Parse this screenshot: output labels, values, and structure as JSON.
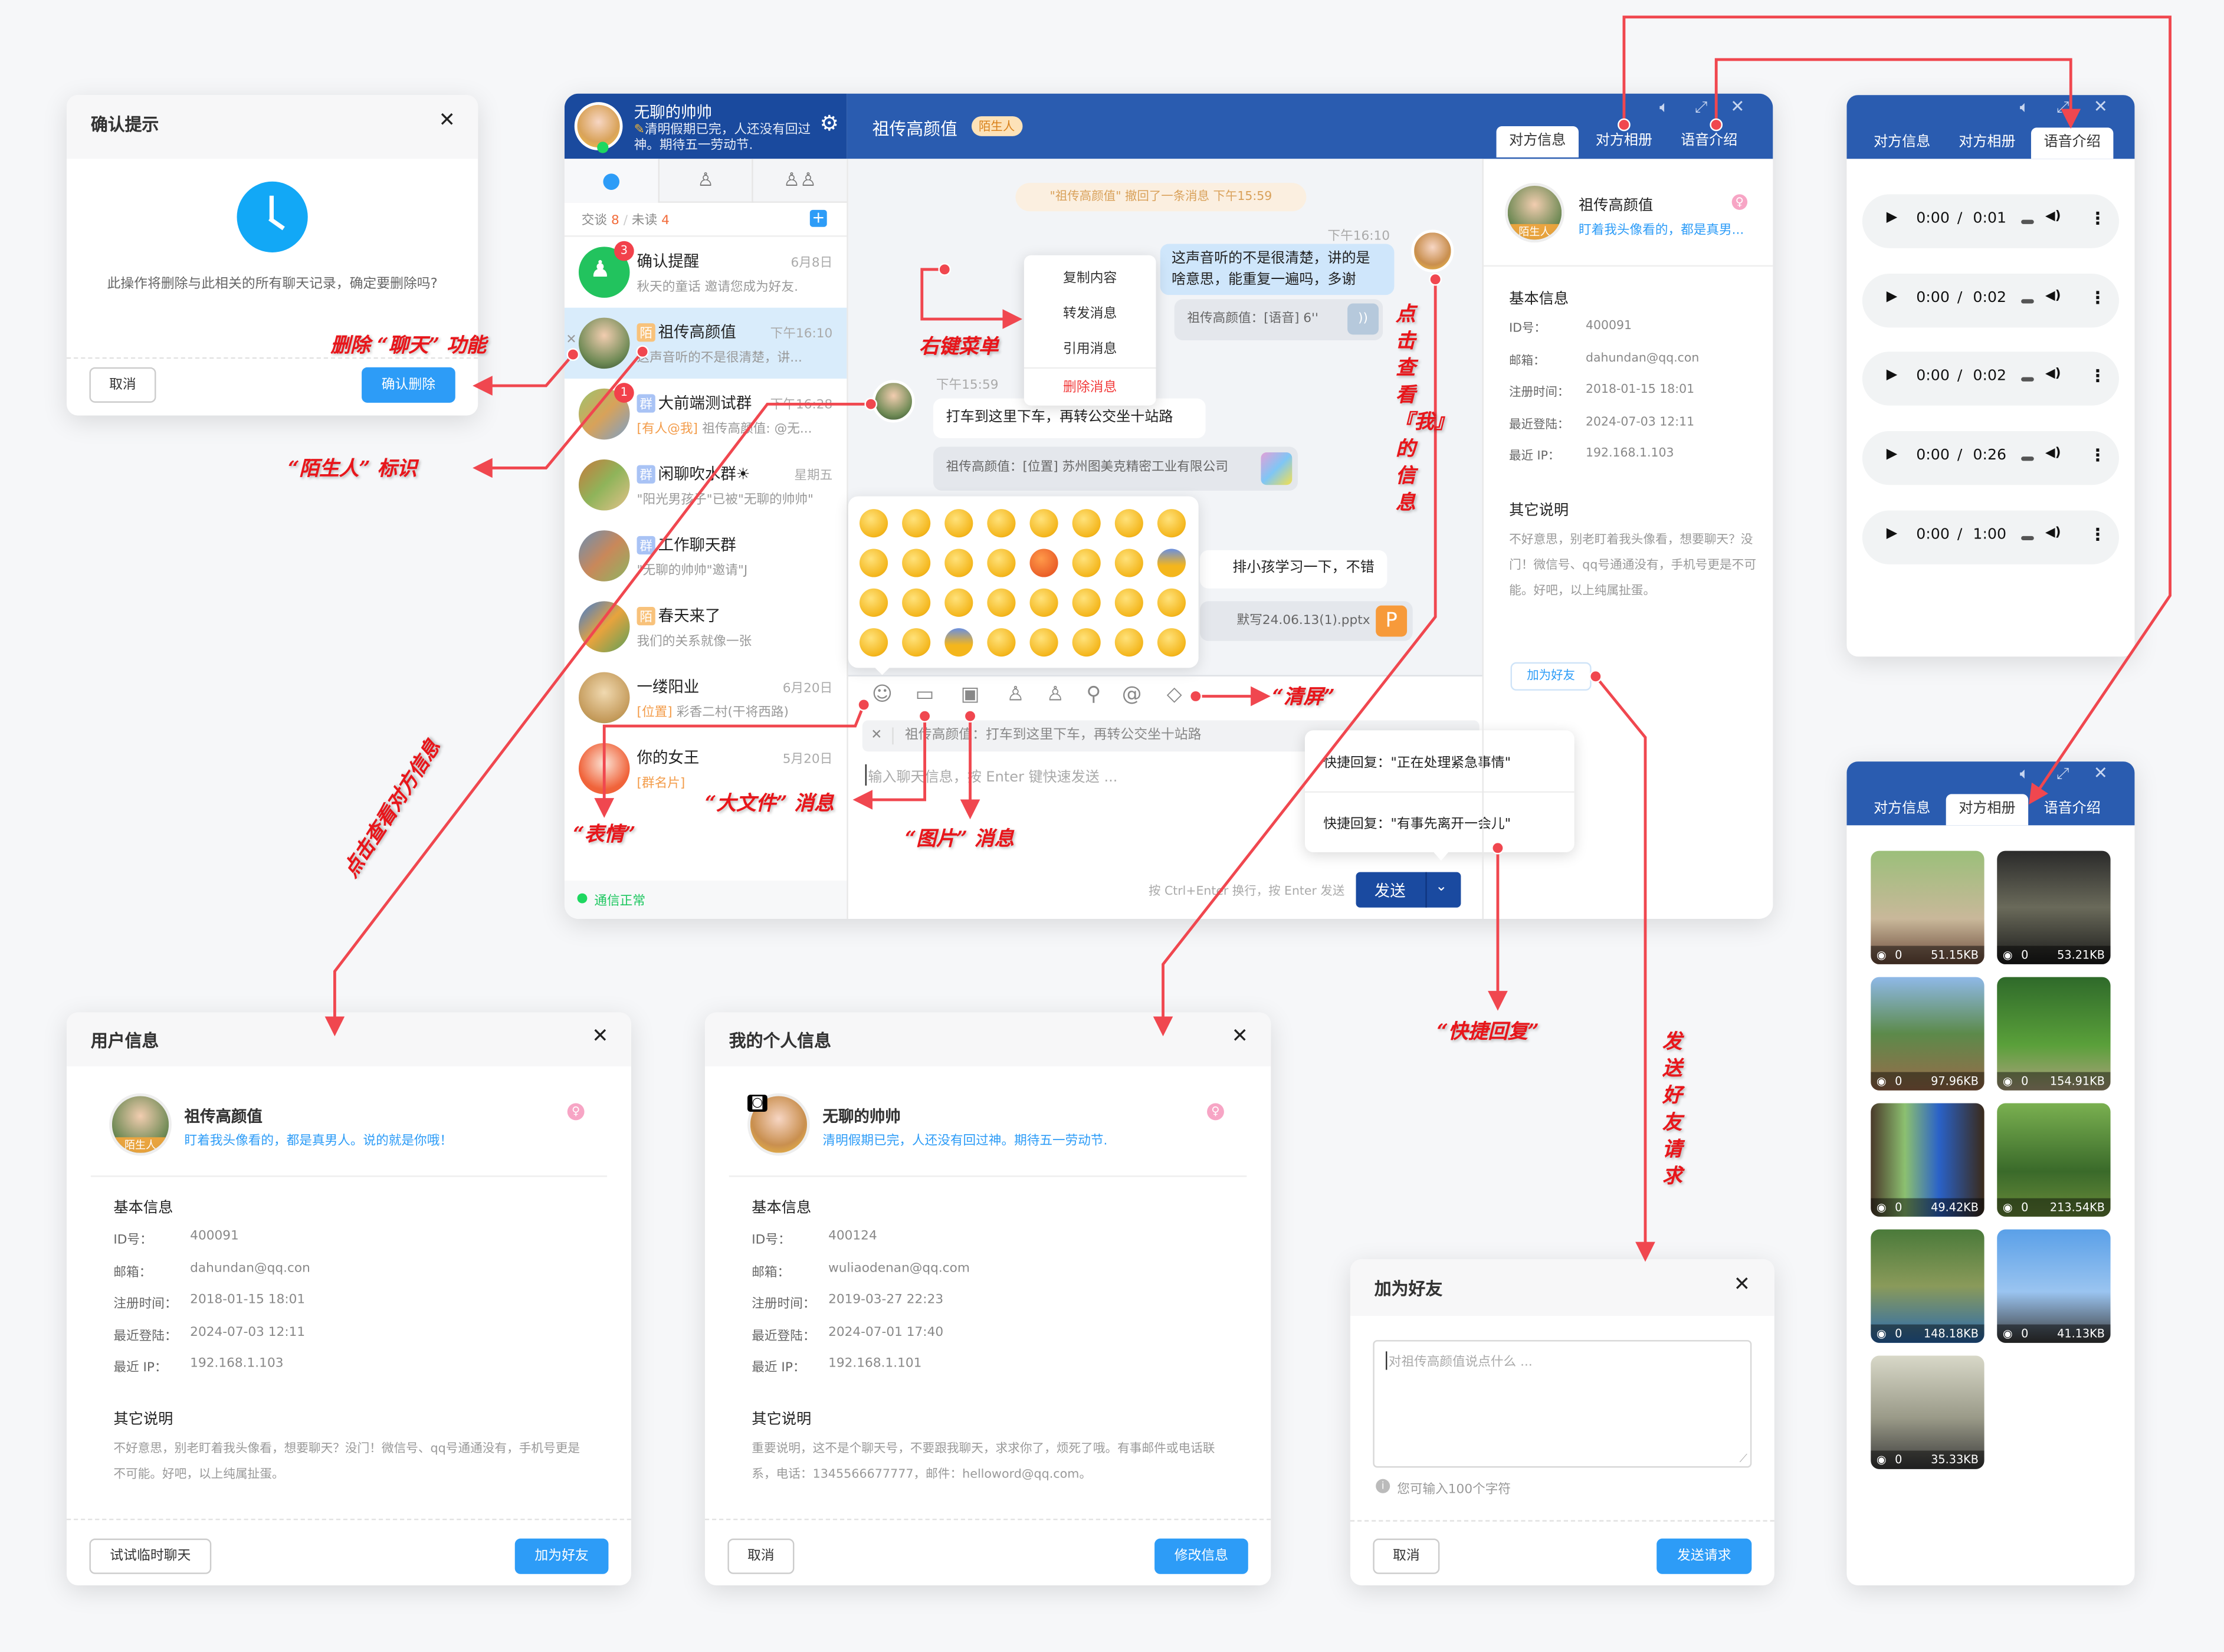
{
  "confirm_dialog": {
    "title": "确认提示",
    "message": "此操作将删除与此相关的所有聊天记录，确定要删除吗?",
    "cancel": "取消",
    "confirm": "确认删除",
    "icon": "clock-icon"
  },
  "main": {
    "me": {
      "name": "无聊的帅帅",
      "signature": "清明假期已完，人还没有回过神。期待五一劳动节."
    },
    "nav_tabs": [
      "chat-icon",
      "contacts-icon",
      "groups-icon"
    ],
    "counts": {
      "talk_label": "交谈",
      "talk": "8",
      "sep": "/",
      "unread_label": "未读",
      "unread": "4"
    },
    "conversations": [
      {
        "name": "确认提醒",
        "tag": "",
        "time": "6月8日",
        "preview_tag": "",
        "preview": "秋天的童话 邀请您成为好友.",
        "badge": "3"
      },
      {
        "name": "祖传高颜值",
        "tag": "陌",
        "time": "下午16:10",
        "preview_tag": "",
        "preview": "这声音听的不是很清楚，讲...",
        "badge": ""
      },
      {
        "name": "大前端测试群",
        "tag": "群",
        "time": "下午16:28",
        "preview_tag": "[有人@我]",
        "preview": "祖传高颜值: @无...",
        "badge": "1"
      },
      {
        "name": "闲聊吹水群☀",
        "tag": "群",
        "time": "星期五",
        "preview_tag": "",
        "preview": "\"阳光男孩子\"已被\"无聊的帅帅\"",
        "badge": ""
      },
      {
        "name": "工作聊天群",
        "tag": "群",
        "time": "",
        "preview_tag": "",
        "preview": "\"无聊的帅帅\"邀请\"J",
        "badge": ""
      },
      {
        "name": "春天来了",
        "tag": "陌",
        "time": "",
        "preview_tag": "",
        "preview": "我们的关系就像一张",
        "badge": ""
      },
      {
        "name": "一缕阳业",
        "tag": "",
        "time": "6月20日",
        "preview_tag": "[位置]",
        "preview": "彩香二村(干将西路)",
        "badge": ""
      },
      {
        "name": "你的女王",
        "tag": "",
        "time": "5月20日",
        "preview_tag": "[群名片]",
        "preview": "",
        "badge": ""
      }
    ],
    "status": "通信正常",
    "chat": {
      "title": "祖传高颜值",
      "stranger_badge": "陌生人",
      "recall": "\"祖传高颜值\" 撤回了一条消息  下午15:59",
      "time_mine": "下午16:10",
      "my_message": "这声音听的不是很清楚，讲的是啥意思，能重复一遍吗，多谢",
      "voice_message": "祖传高颜值：[语音] 6''",
      "time_other": "下午15:59",
      "other_message": "打车到这里下车，再转公交坐十站路",
      "location_message": "祖传高颜值：[位置] 苏州图美克精密工业有限公司",
      "text_message": "排小孩学习一下，不错",
      "file_message": "默写24.06.13(1).pptx",
      "file_icon_letter": "P"
    },
    "context_menu": [
      "复制内容",
      "转发消息",
      "引用消息",
      "删除消息"
    ],
    "emoji_count": 32,
    "toolbar": [
      "emoji-icon",
      "folder-icon",
      "image-icon",
      "contact-card-icon",
      "group-card-icon",
      "location-icon",
      "at-icon",
      "eraser-icon"
    ],
    "quote": "祖传高颜值：打车到这里下车，再转公交坐十站路",
    "input_placeholder": "输入聊天信息，按 Enter 键快速发送 ...",
    "quick_replies": [
      "快捷回复：\"正在处理紧急事情\"",
      "快捷回复：\"有事先离开一会儿\""
    ],
    "send_hint": "按 Ctrl+Enter 换行，按 Enter 发送",
    "send": "发送",
    "side_tabs": [
      "对方信息",
      "对方相册",
      "语音介绍"
    ],
    "profile": {
      "name": "祖传高颜值",
      "stranger": "陌生人",
      "signature": "盯着我头像看的，都是真男...",
      "basic_title": "基本信息",
      "rows": [
        [
          "ID号：",
          "400091"
        ],
        [
          "邮箱：",
          "dahundan@qq.con"
        ],
        [
          "注册时间：",
          "2018-01-15 18:01"
        ],
        [
          "最近登陆：",
          "2024-07-03 12:11"
        ],
        [
          "最近 IP：",
          "192.168.1.103"
        ]
      ],
      "other_title": "其它说明",
      "other_text": "不好意思，别老盯着我头像看，想要聊天？没门！微信号、qq号通通没有，手机号更是不可能。好吧，以上纯属扯蛋。",
      "add_friend": "加为好友"
    }
  },
  "voice_panel": {
    "tabs": [
      "对方信息",
      "对方相册",
      "语音介绍"
    ],
    "active_tab": 2,
    "clips": [
      {
        "current": "0:00",
        "duration": "0:01"
      },
      {
        "current": "0:00",
        "duration": "0:02"
      },
      {
        "current": "0:00",
        "duration": "0:02"
      },
      {
        "current": "0:00",
        "duration": "0:26"
      },
      {
        "current": "0:00",
        "duration": "1:00"
      }
    ]
  },
  "album_panel": {
    "tabs": [
      "对方信息",
      "对方相册",
      "语音介绍"
    ],
    "active_tab": 1,
    "photos": [
      {
        "views": "0",
        "size": "51.15KB"
      },
      {
        "views": "0",
        "size": "53.21KB"
      },
      {
        "views": "0",
        "size": "97.96KB"
      },
      {
        "views": "0",
        "size": "154.91KB"
      },
      {
        "views": "0",
        "size": "49.42KB"
      },
      {
        "views": "0",
        "size": "213.54KB"
      },
      {
        "views": "0",
        "size": "148.18KB"
      },
      {
        "views": "0",
        "size": "41.13KB"
      },
      {
        "views": "0",
        "size": "35.33KB"
      }
    ]
  },
  "user_dialog": {
    "title": "用户信息",
    "name": "祖传高颜值",
    "stranger": "陌生人",
    "signature": "盯着我头像看的，都是真男人。说的就是你哦！",
    "basic_title": "基本信息",
    "rows": [
      [
        "ID号：",
        "400091"
      ],
      [
        "邮箱：",
        "dahundan@qq.con"
      ],
      [
        "注册时间：",
        "2018-01-15 18:01"
      ],
      [
        "最近登陆：",
        "2024-07-03 12:11"
      ],
      [
        "最近 IP：",
        "192.168.1.103"
      ]
    ],
    "other_title": "其它说明",
    "other_text": "不好意思，别老盯着我头像看，想要聊天？没门！微信号、qq号通通没有，手机号更是不可能。好吧，以上纯属扯蛋。",
    "left_button": "试试临时聊天",
    "right_button": "加为好友"
  },
  "my_dialog": {
    "title": "我的个人信息",
    "name": "无聊的帅帅",
    "signature": "清明假期已完，人还没有回过神。期待五一劳动节.",
    "basic_title": "基本信息",
    "rows": [
      [
        "ID号：",
        "400124"
      ],
      [
        "邮箱：",
        "wuliaodenan@qq.com"
      ],
      [
        "注册时间：",
        "2019-03-27 22:23"
      ],
      [
        "最近登陆：",
        "2024-07-01 17:40"
      ],
      [
        "最近 IP：",
        "192.168.1.101"
      ]
    ],
    "other_title": "其它说明",
    "other_text": "重要说明，这不是个聊天号，不要跟我聊天，求求你了，烦死了哦。有事邮件或电话联系，电话：1345566677777，邮件：helloword@qq.com。",
    "left_button": "取消",
    "right_button": "修改信息"
  },
  "add_friend_dialog": {
    "title": "加为好友",
    "placeholder": "对祖传高颜值说点什么 ...",
    "hint": "您可输入100个字符",
    "cancel": "取消",
    "submit": "发送请求"
  },
  "annotations": {
    "delete_chat": "删除 “聊天” 功能",
    "stranger_mark": "“陌生人” 标识",
    "right_menu": "右键菜单",
    "view_other": "点击查看对方信息",
    "view_me": "点击查看『我』的信息",
    "emoji": "“表情”",
    "big_file": "“大文件” 消息",
    "image": "“图片” 消息",
    "clear": "“清屏”",
    "quick_reply": "“快捷回复”",
    "friend_request": "发送好友请求"
  },
  "colors": {
    "header_blue": "#2a5cb0",
    "header_dark": "#1a4a9e",
    "primary": "#2d9cf7",
    "annotation_red": "#e8161b",
    "online": "#1ed760"
  }
}
